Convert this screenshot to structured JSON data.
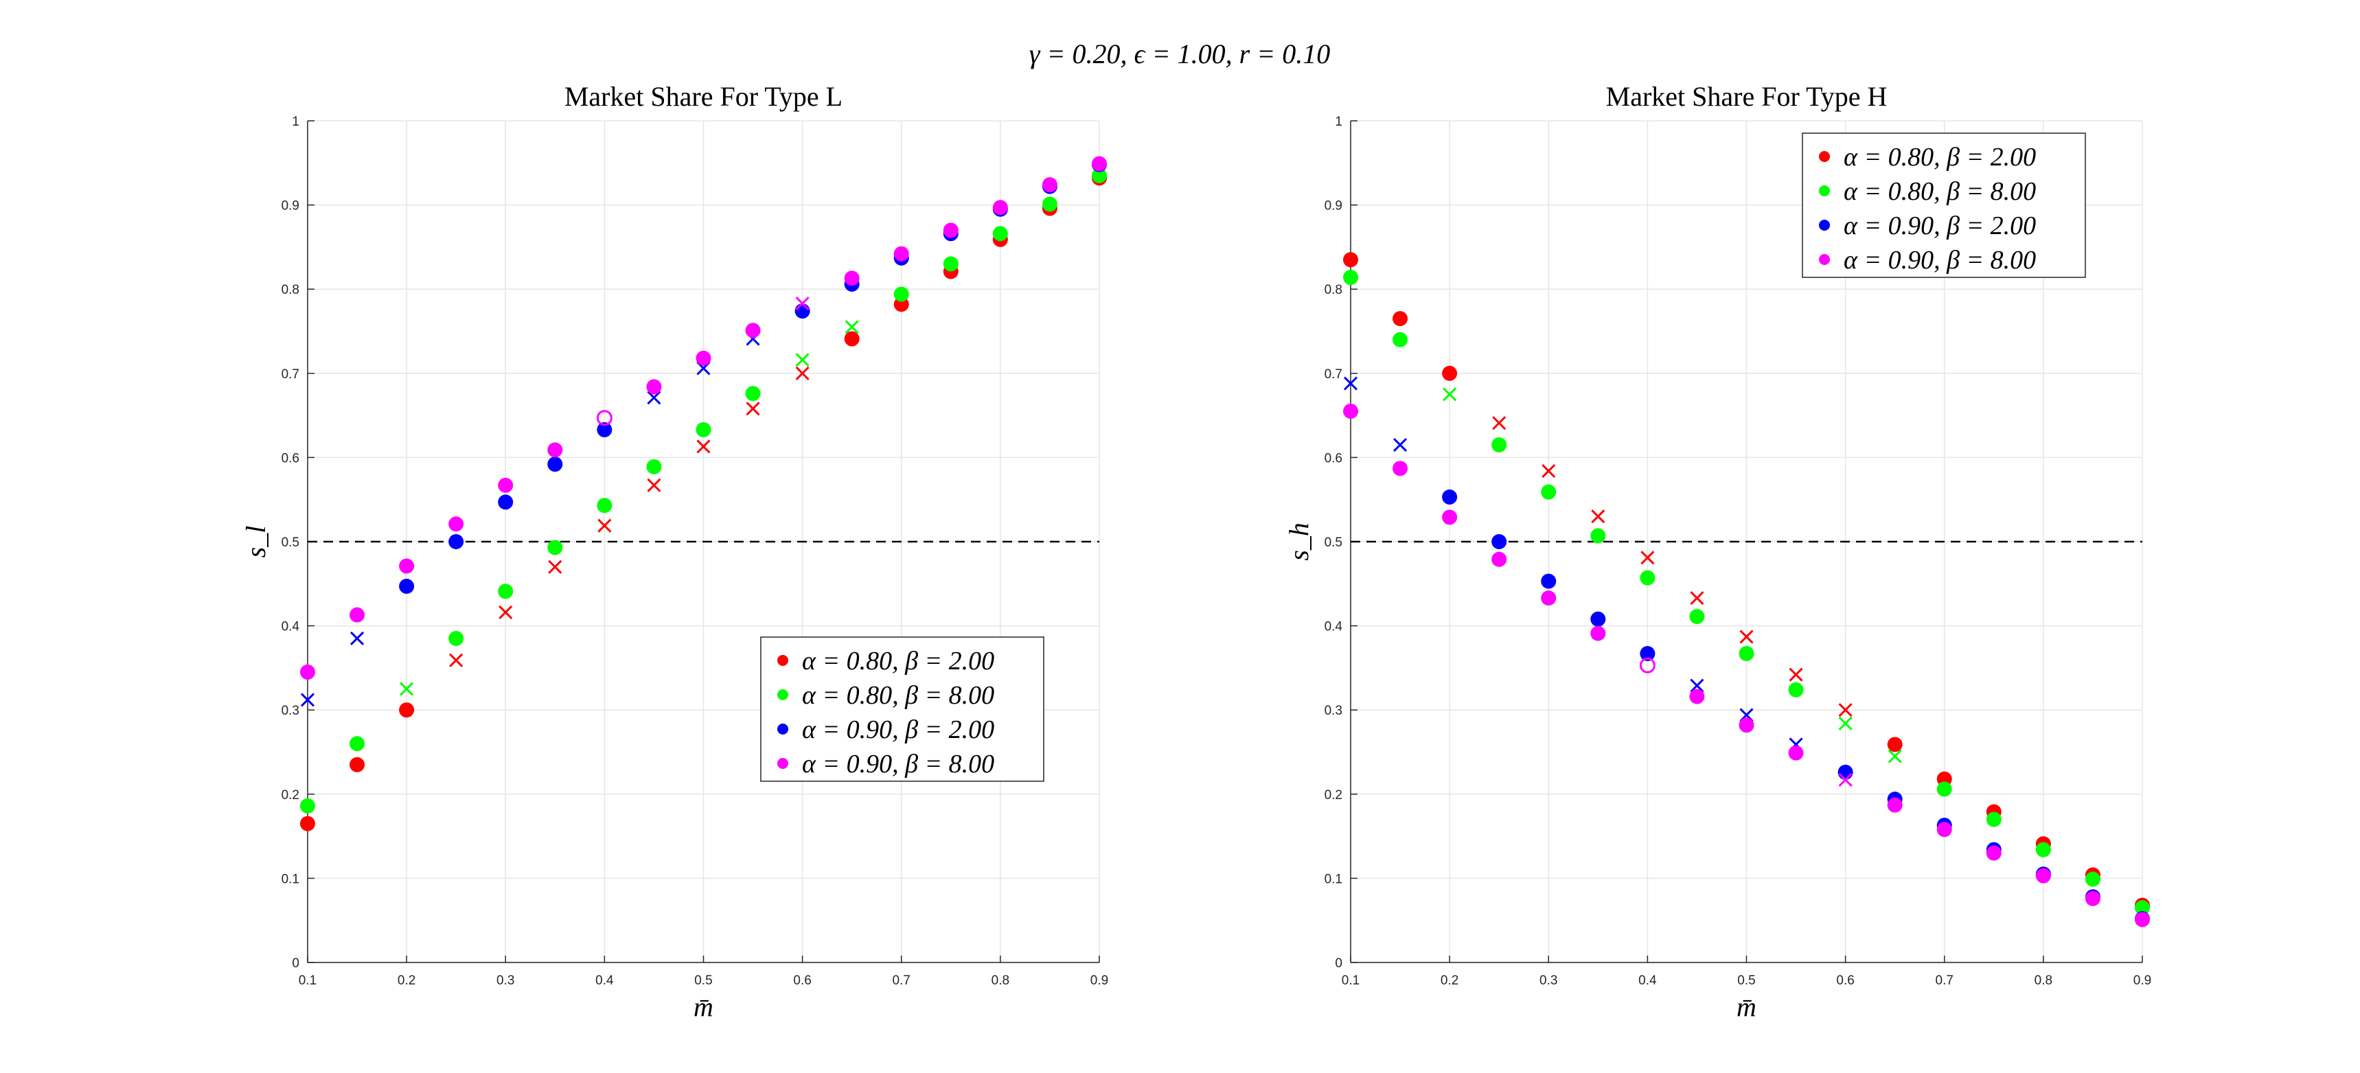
{
  "figure_title": "γ = 0.20, ϵ = 1.00, r = 0.10",
  "colors": {
    "red": "#ff0000",
    "green": "#00ff00",
    "blue": "#0000ff",
    "magenta": "#ff00ff",
    "grid": "#e6e6e6",
    "axis": "#262626",
    "threshold": "#000000"
  },
  "chart_data": [
    {
      "type": "scatter",
      "title": "Market Share For Type L",
      "xlabel": "m̄",
      "ylabel": "s_l",
      "xlim": [
        0.1,
        0.9
      ],
      "ylim": [
        0,
        1
      ],
      "xticks": [
        "0.1",
        "0.2",
        "0.3",
        "0.4",
        "0.5",
        "0.6",
        "0.7",
        "0.8",
        "0.9"
      ],
      "yticks": [
        "0",
        "0.1",
        "0.2",
        "0.3",
        "0.4",
        "0.5",
        "0.6",
        "0.7",
        "0.8",
        "0.9",
        "1"
      ],
      "grid": true,
      "legend_position": "bottom-right",
      "threshold_line": {
        "y": 0.5,
        "style": "dashed"
      },
      "marker_legend": {
        "filled_circle": "dot",
        "x": "cross",
        "open_circle": "open"
      },
      "x": [
        0.1,
        0.15,
        0.2,
        0.25,
        0.3,
        0.35,
        0.4,
        0.45,
        0.5,
        0.55,
        0.6,
        0.65,
        0.7,
        0.75,
        0.8,
        0.85,
        0.9
      ],
      "series": [
        {
          "name": "α = 0.80, β = 2.00",
          "color": "#ff0000",
          "values": [
            0.165,
            0.235,
            0.3,
            0.359,
            0.416,
            0.47,
            0.519,
            0.567,
            0.613,
            0.658,
            0.7,
            0.741,
            0.782,
            0.821,
            0.859,
            0.896,
            0.932
          ],
          "markers": [
            "dot",
            "dot",
            "dot",
            "x",
            "x",
            "x",
            "x",
            "x",
            "x",
            "x",
            "x",
            "dot",
            "dot",
            "dot",
            "dot",
            "dot",
            "dot"
          ]
        },
        {
          "name": "α = 0.80, β = 8.00",
          "color": "#00ff00",
          "values": [
            0.186,
            0.26,
            0.325,
            0.385,
            0.441,
            0.493,
            0.543,
            0.589,
            0.633,
            0.676,
            0.716,
            0.755,
            0.794,
            0.83,
            0.866,
            0.901,
            0.935
          ],
          "markers": [
            "dot",
            "dot",
            "x",
            "dot",
            "dot",
            "dot",
            "dot",
            "dot",
            "dot",
            "dot",
            "x",
            "x",
            "dot",
            "dot",
            "dot",
            "dot",
            "dot"
          ]
        },
        {
          "name": "α = 0.90, β = 2.00",
          "color": "#0000ff",
          "values": [
            0.312,
            0.385,
            0.447,
            0.5,
            0.547,
            0.592,
            0.633,
            0.671,
            0.706,
            0.741,
            0.774,
            0.806,
            0.837,
            0.866,
            0.895,
            0.922,
            0.948
          ],
          "markers": [
            "x",
            "x",
            "dot",
            "dot",
            "dot",
            "dot",
            "dot",
            "x",
            "x",
            "x",
            "dot",
            "dot",
            "dot",
            "dot",
            "dot",
            "dot",
            "dot"
          ]
        },
        {
          "name": "α = 0.90, β = 8.00",
          "color": "#ff00ff",
          "values": [
            0.345,
            0.413,
            0.471,
            0.521,
            0.567,
            0.609,
            0.647,
            0.684,
            0.718,
            0.751,
            0.783,
            0.813,
            0.842,
            0.87,
            0.897,
            0.924,
            0.949
          ],
          "markers": [
            "dot",
            "dot",
            "dot",
            "dot",
            "dot",
            "dot",
            "open",
            "dot",
            "dot",
            "dot",
            "x",
            "dot",
            "dot",
            "dot",
            "dot",
            "dot",
            "dot"
          ]
        }
      ]
    },
    {
      "type": "scatter",
      "title": "Market Share For Type H",
      "xlabel": "m̄",
      "ylabel": "s_h",
      "xlim": [
        0.1,
        0.9
      ],
      "ylim": [
        0,
        1
      ],
      "xticks": [
        "0.1",
        "0.2",
        "0.3",
        "0.4",
        "0.5",
        "0.6",
        "0.7",
        "0.8",
        "0.9"
      ],
      "yticks": [
        "0",
        "0.1",
        "0.2",
        "0.3",
        "0.4",
        "0.5",
        "0.6",
        "0.7",
        "0.8",
        "0.9",
        "1"
      ],
      "grid": true,
      "legend_position": "top-right",
      "threshold_line": {
        "y": 0.5,
        "style": "dashed"
      },
      "x": [
        0.1,
        0.15,
        0.2,
        0.25,
        0.3,
        0.35,
        0.4,
        0.45,
        0.5,
        0.55,
        0.6,
        0.65,
        0.7,
        0.75,
        0.8,
        0.85,
        0.9
      ],
      "series": [
        {
          "name": "α = 0.80, β = 2.00",
          "color": "#ff0000",
          "values": [
            0.835,
            0.765,
            0.7,
            0.641,
            0.584,
            0.53,
            0.481,
            0.433,
            0.387,
            0.342,
            0.3,
            0.259,
            0.218,
            0.179,
            0.141,
            0.104,
            0.068
          ],
          "markers": [
            "dot",
            "dot",
            "dot",
            "x",
            "x",
            "x",
            "x",
            "x",
            "x",
            "x",
            "x",
            "dot",
            "dot",
            "dot",
            "dot",
            "dot",
            "dot"
          ]
        },
        {
          "name": "α = 0.80, β = 8.00",
          "color": "#00ff00",
          "values": [
            0.814,
            0.74,
            0.675,
            0.615,
            0.559,
            0.507,
            0.457,
            0.411,
            0.367,
            0.324,
            0.284,
            0.245,
            0.206,
            0.17,
            0.134,
            0.099,
            0.065
          ],
          "markers": [
            "dot",
            "dot",
            "x",
            "dot",
            "dot",
            "dot",
            "dot",
            "dot",
            "dot",
            "dot",
            "x",
            "x",
            "dot",
            "dot",
            "dot",
            "dot",
            "dot"
          ]
        },
        {
          "name": "α = 0.90, β = 2.00",
          "color": "#0000ff",
          "values": [
            0.688,
            0.615,
            0.553,
            0.5,
            0.453,
            0.408,
            0.367,
            0.329,
            0.294,
            0.259,
            0.226,
            0.194,
            0.163,
            0.134,
            0.105,
            0.078,
            0.052
          ],
          "markers": [
            "x",
            "x",
            "dot",
            "dot",
            "dot",
            "dot",
            "dot",
            "x",
            "x",
            "x",
            "dot",
            "dot",
            "dot",
            "dot",
            "dot",
            "dot",
            "dot"
          ]
        },
        {
          "name": "α = 0.90, β = 8.00",
          "color": "#ff00ff",
          "values": [
            0.655,
            0.587,
            0.529,
            0.479,
            0.433,
            0.391,
            0.353,
            0.316,
            0.282,
            0.249,
            0.217,
            0.187,
            0.158,
            0.13,
            0.103,
            0.076,
            0.051
          ],
          "markers": [
            "dot",
            "dot",
            "dot",
            "dot",
            "dot",
            "dot",
            "open",
            "dot",
            "dot",
            "dot",
            "x",
            "dot",
            "dot",
            "dot",
            "dot",
            "dot",
            "dot"
          ]
        }
      ]
    }
  ]
}
